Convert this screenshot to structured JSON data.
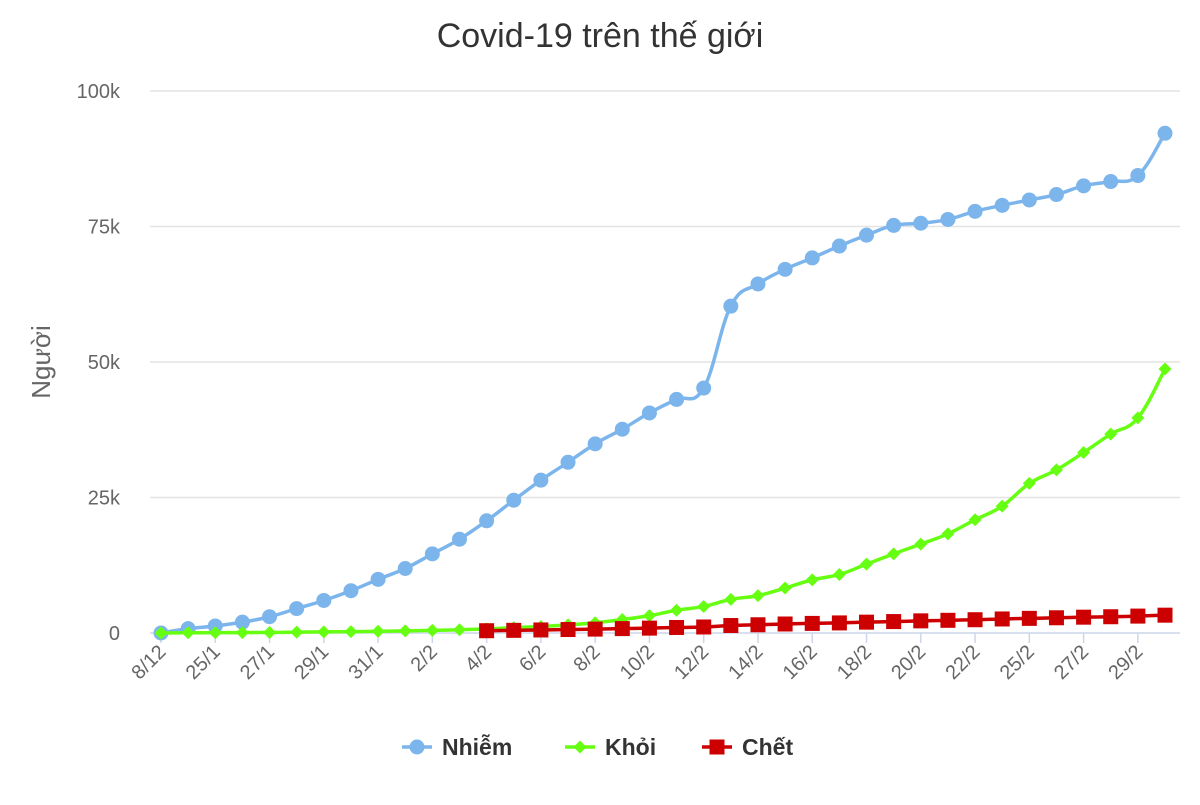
{
  "chart_data": {
    "type": "line",
    "title": "Covid-19 trên thế giới",
    "ylabel": "Người",
    "xlabel": "",
    "ylim": [
      0,
      100000
    ],
    "yticks": [
      0,
      25000,
      50000,
      75000,
      100000
    ],
    "ytick_labels": [
      "0",
      "25k",
      "50k",
      "75k",
      "100k"
    ],
    "x_tick_labels": [
      "8/12",
      "25/1",
      "27/1",
      "29/1",
      "31/1",
      "2/2",
      "4/2",
      "6/2",
      "8/2",
      "10/2",
      "12/2",
      "14/2",
      "16/2",
      "18/2",
      "20/2",
      "22/2",
      "25/2",
      "27/2",
      "29/2"
    ],
    "grid": true,
    "legend_position": "bottom",
    "num_points": 38,
    "series": [
      {
        "name": "Nhiễm",
        "color": "#7cb5ec",
        "marker": "circle",
        "start_index": 0,
        "values": [
          0,
          800,
          1300,
          2000,
          3000,
          4500,
          6000,
          7800,
          9900,
          11900,
          14600,
          17300,
          20700,
          24500,
          28200,
          31500,
          34900,
          37600,
          40600,
          43100,
          45200,
          60300,
          64400,
          67100,
          69200,
          71400,
          73400,
          75200,
          75600,
          76300,
          77800,
          78900,
          79900,
          80900,
          82500,
          83300,
          84400,
          92200
        ]
      },
      {
        "name": "Khỏi",
        "color": "#66ff11",
        "marker": "diamond",
        "start_index": 0,
        "values": [
          0,
          50,
          60,
          80,
          100,
          150,
          200,
          250,
          320,
          390,
          480,
          600,
          750,
          1000,
          1200,
          1500,
          1900,
          2500,
          3200,
          4200,
          4900,
          6200,
          6900,
          8300,
          9800,
          10800,
          12700,
          14600,
          16400,
          18300,
          20900,
          23400,
          27600,
          30100,
          33300,
          36700,
          39700,
          48700
        ]
      },
      {
        "name": "Chết",
        "color": "#cc0000",
        "marker": "square",
        "start_index": 12,
        "values": [
          420,
          490,
          560,
          640,
          720,
          810,
          900,
          1020,
          1110,
          1380,
          1520,
          1660,
          1770,
          1860,
          2000,
          2110,
          2240,
          2340,
          2450,
          2590,
          2700,
          2810,
          2920,
          3000,
          3120,
          3290
        ]
      }
    ]
  }
}
